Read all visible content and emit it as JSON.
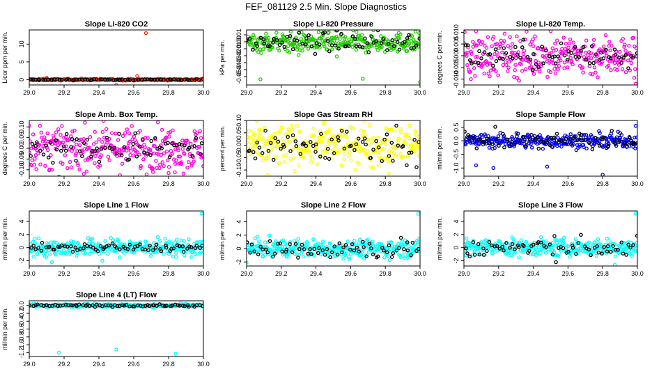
{
  "figure_title": "FEF_081129  2.5 Min. Slope Diagnostics",
  "colors": {
    "overlay": "#000000",
    "frame": "#000000",
    "background": "#ffffff"
  },
  "chart_data": [
    {
      "type": "scatter",
      "title": "Slope Li-820 CO2",
      "ylabel": "Licor ppm per min.",
      "xlim": [
        29.0,
        30.0
      ],
      "ylim": [
        -1.5,
        14
      ],
      "x_ticks": [
        "29.0",
        "29.2",
        "29.4",
        "29.6",
        "29.8",
        "30.0"
      ],
      "y_ticks": [
        0,
        5,
        10
      ],
      "y_tick_labels": [
        "0",
        "5",
        "10"
      ],
      "series": [
        {
          "name": "all",
          "color": "#ff2a00",
          "n": 290,
          "center": 0,
          "spread": 0.12,
          "outliers": [
            [
              29.67,
              13.1
            ],
            [
              29.5,
              -1.5
            ],
            [
              29.62,
              1.0
            ],
            [
              29.1,
              0.5
            ],
            [
              29.3,
              0.35
            ]
          ]
        },
        {
          "name": "highlight",
          "color": "#000000",
          "n": 70,
          "center": 0,
          "spread": 0.08,
          "outliers": []
        }
      ]
    },
    {
      "type": "scatter",
      "title": "Slope Li-820 Pressure",
      "ylabel": "kPa per min.",
      "xlim": [
        29.0,
        30.0
      ],
      "ylim": [
        -0.062,
        0.017
      ],
      "x_ticks": [
        "29.0",
        "29.2",
        "29.4",
        "29.6",
        "29.8",
        "30.0"
      ],
      "y_ticks": [
        0.01,
        0.0,
        -0.01,
        -0.02,
        -0.03,
        -0.04,
        -0.05
      ],
      "y_tick_labels": [
        "0.01",
        "0.00",
        "-0.01",
        "-0.02",
        "-0.03",
        "-0.04",
        "-0.05"
      ],
      "series": [
        {
          "name": "all",
          "color": "#22cc00",
          "n": 300,
          "center": -0.001,
          "spread": 0.007,
          "outliers": [
            [
              29.08,
              -0.054
            ],
            [
              29.67,
              -0.053
            ],
            [
              30.0,
              -0.058
            ],
            [
              29.52,
              -0.021
            ],
            [
              29.3,
              -0.019
            ]
          ]
        },
        {
          "name": "highlight",
          "color": "#000000",
          "n": 70,
          "center": -0.001,
          "spread": 0.007,
          "outliers": []
        }
      ]
    },
    {
      "type": "scatter",
      "title": "Slope Li-820 Temp.",
      "ylabel": "degrees C per min.",
      "xlim": [
        29.0,
        30.0
      ],
      "ylim": [
        -0.0125,
        0.011
      ],
      "x_ticks": [
        "29.0",
        "29.2",
        "29.4",
        "29.6",
        "29.8",
        "30.0"
      ],
      "y_ticks": [
        0.01,
        0.005,
        0.0,
        -0.005,
        -0.01
      ],
      "y_tick_labels": [
        "0.010",
        "0.005",
        "0.000",
        "-0.005",
        "-0.010"
      ],
      "series": [
        {
          "name": "all",
          "color": "#ff00e0",
          "n": 300,
          "center": 0.0,
          "spread": 0.0045,
          "outliers": [
            [
              29.07,
              0.0105
            ],
            [
              29.5,
              0.0105
            ],
            [
              29.99,
              -0.012
            ],
            [
              29.04,
              -0.01
            ]
          ]
        },
        {
          "name": "highlight",
          "color": "#000000",
          "n": 70,
          "center": 0.0,
          "spread": 0.003,
          "outliers": []
        }
      ]
    },
    {
      "type": "scatter",
      "title": "Slope Amb. Box Temp.",
      "ylabel": "degrees C per min.",
      "xlim": [
        29.0,
        30.0
      ],
      "ylim": [
        -0.13,
        0.13
      ],
      "x_ticks": [
        "29.0",
        "29.2",
        "29.4",
        "29.6",
        "29.8",
        "30.0"
      ],
      "y_ticks": [
        0.1,
        0.05,
        0.0,
        -0.05,
        -0.1
      ],
      "y_tick_labels": [
        "0.10",
        "0.05",
        "0.00",
        "-0.05",
        "-0.10"
      ],
      "series": [
        {
          "name": "all",
          "color": "#ff00e0",
          "n": 300,
          "center": 0.0,
          "spread": 0.05,
          "outliers": [
            [
              29.32,
              0.12
            ],
            [
              29.8,
              -0.115
            ],
            [
              29.0,
              0.105
            ],
            [
              29.13,
              -0.1
            ]
          ]
        },
        {
          "name": "highlight",
          "color": "#000000",
          "n": 70,
          "center": 0.0,
          "spread": 0.035,
          "outliers": []
        }
      ]
    },
    {
      "type": "scatter",
      "title": "Slope Gas Stream RH",
      "ylabel": "percent per min.",
      "xlim": [
        29.0,
        30.0
      ],
      "ylim": [
        -0.125,
        0.1
      ],
      "x_ticks": [
        "29.0",
        "29.2",
        "29.4",
        "29.6",
        "29.8",
        "30.0"
      ],
      "y_ticks": [
        0.1,
        0.05,
        0.0,
        -0.05,
        -0.1
      ],
      "y_tick_labels": [
        "0.10",
        "0.05",
        "0.00",
        "-0.05",
        "-0.10"
      ],
      "series": [
        {
          "name": "all",
          "color": "#ffff00",
          "n": 300,
          "center": 0.0,
          "spread": 0.04,
          "outliers": [
            [
              29.68,
              0.095
            ],
            [
              29.12,
              -0.12
            ],
            [
              29.82,
              -0.115
            ],
            [
              29.45,
              0.095
            ]
          ]
        },
        {
          "name": "highlight",
          "color": "#000000",
          "n": 70,
          "center": 0.0,
          "spread": 0.035,
          "outliers": []
        }
      ]
    },
    {
      "type": "scatter",
      "title": "Slope Sample Flow",
      "ylabel": "ml/min per min.",
      "xlim": [
        29.0,
        30.0
      ],
      "ylim": [
        -1.3,
        0.75
      ],
      "x_ticks": [
        "29.0",
        "29.2",
        "29.4",
        "29.6",
        "29.8",
        "30.0"
      ],
      "y_ticks": [
        0.5,
        0.0,
        -0.5,
        -1.0
      ],
      "y_tick_labels": [
        "0.5",
        "0.0",
        "-0.5",
        "-1.0"
      ],
      "series": [
        {
          "name": "all",
          "color": "#0000ee",
          "n": 300,
          "center": 0.0,
          "spread": 0.13,
          "outliers": [
            [
              29.17,
              -1.0
            ],
            [
              29.48,
              -0.95
            ],
            [
              29.8,
              -1.25
            ],
            [
              29.07,
              -0.9
            ],
            [
              29.99,
              0.55
            ]
          ]
        },
        {
          "name": "highlight",
          "color": "#000000",
          "n": 70,
          "center": 0.0,
          "spread": 0.18,
          "outliers": []
        }
      ]
    },
    {
      "type": "scatter",
      "title": "Slope Line 1 Flow",
      "ylabel": "ml/min per min.",
      "xlim": [
        29.0,
        30.0
      ],
      "ylim": [
        -2.8,
        5.6
      ],
      "x_ticks": [
        "29.0",
        "29.2",
        "29.4",
        "29.6",
        "29.8",
        "30.0"
      ],
      "y_ticks": [
        4,
        2,
        0,
        -2
      ],
      "y_tick_labels": [
        "4",
        "2",
        "0",
        "-2"
      ],
      "series": [
        {
          "name": "all",
          "color": "#00ffff",
          "n": 300,
          "center": 0.0,
          "spread": 0.65,
          "outliers": [
            [
              29.99,
              5.2
            ],
            [
              29.13,
              -2.2
            ],
            [
              29.42,
              -2.0
            ]
          ]
        },
        {
          "name": "highlight",
          "color": "#000000",
          "n": 70,
          "center": 0.0,
          "spread": 0.3,
          "outliers": []
        }
      ]
    },
    {
      "type": "scatter",
      "title": "Slope Line 2 Flow",
      "ylabel": "ml/min per min.",
      "xlim": [
        29.0,
        30.0
      ],
      "ylim": [
        -2.6,
        5.6
      ],
      "x_ticks": [
        "29.0",
        "29.2",
        "29.4",
        "29.6",
        "29.8",
        "30.0"
      ],
      "y_ticks": [
        4,
        2,
        0,
        -2
      ],
      "y_tick_labels": [
        "4",
        "2",
        "0",
        "-2"
      ],
      "series": [
        {
          "name": "all",
          "color": "#00ffff",
          "n": 300,
          "center": 0.0,
          "spread": 0.65,
          "outliers": [
            [
              29.99,
              5.2
            ],
            [
              29.0,
              -2.1
            ]
          ]
        },
        {
          "name": "highlight",
          "color": "#000000",
          "n": 70,
          "center": 0.0,
          "spread": 0.8,
          "outliers": []
        }
      ]
    },
    {
      "type": "scatter",
      "title": "Slope Line 3 Flow",
      "ylabel": "ml/min per min.",
      "xlim": [
        29.0,
        30.0
      ],
      "ylim": [
        -2.8,
        5.6
      ],
      "x_ticks": [
        "29.0",
        "29.2",
        "29.4",
        "29.6",
        "29.8",
        "30.0"
      ],
      "y_ticks": [
        4,
        2,
        0,
        -2
      ],
      "y_tick_labels": [
        "4",
        "2",
        "0",
        "-2"
      ],
      "series": [
        {
          "name": "all",
          "color": "#00ffff",
          "n": 300,
          "center": 0.0,
          "spread": 0.65,
          "outliers": [
            [
              29.99,
              5.2
            ],
            [
              29.87,
              -2.6
            ]
          ]
        },
        {
          "name": "highlight",
          "color": "#000000",
          "n": 70,
          "center": 0.0,
          "spread": 0.8,
          "outliers": []
        }
      ]
    },
    {
      "type": "scatter",
      "title": "Slope Line 4 (LT) Flow",
      "ylabel": "ml/min per min.",
      "xlim": [
        29.0,
        30.0
      ],
      "ylim": [
        -1.3,
        0.12
      ],
      "x_ticks": [
        "29.0",
        "29.2",
        "29.4",
        "29.6",
        "29.8",
        "30.0"
      ],
      "y_ticks": [
        0.0,
        -0.2,
        -0.4,
        -0.6,
        -0.8,
        -1.0,
        -1.2
      ],
      "y_tick_labels": [
        "0.0",
        "-0.2",
        "-0.4",
        "-0.6",
        "-0.8",
        "-1.0",
        "-1.2"
      ],
      "series": [
        {
          "name": "all",
          "color": "#00ffff",
          "n": 300,
          "center": 0.0,
          "spread": 0.018,
          "outliers": [
            [
              29.17,
              -1.2
            ],
            [
              29.5,
              -1.12
            ],
            [
              29.84,
              -1.23
            ]
          ]
        },
        {
          "name": "highlight",
          "color": "#000000",
          "n": 70,
          "center": 0.0,
          "spread": 0.015,
          "outliers": []
        }
      ]
    }
  ]
}
